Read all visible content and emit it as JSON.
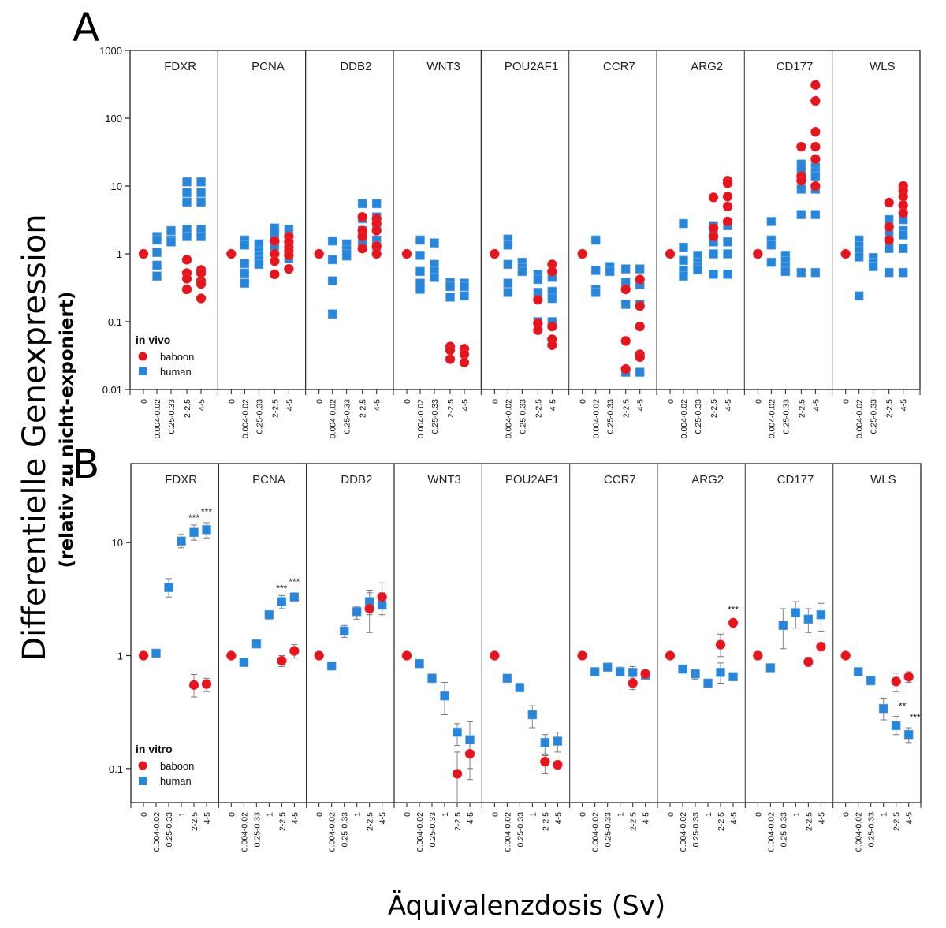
{
  "figure": {
    "y_axis_title": "Differentielle Genexpression",
    "y_axis_subtitle": "(relativ zu nicht-exponiert)",
    "x_axis_title": "Äquivalenzdosis (Sv)"
  },
  "chart_data": [
    {
      "panel": "A",
      "type": "scatter",
      "scale": "log",
      "ylim": [
        0.01,
        1000
      ],
      "yticks": [
        "0.01",
        "0.1",
        "1",
        "10",
        "100",
        "1000"
      ],
      "yticks_values": [
        0.01,
        0.1,
        1,
        10,
        100,
        1000
      ],
      "categories": [
        "0",
        "0.004-0.02",
        "0.25-0.33",
        "2-2.5",
        "4-5"
      ],
      "legend": {
        "title": "in vivo",
        "entries": [
          {
            "name": "baboon",
            "color": "#e8141b",
            "marker": "circle"
          },
          {
            "name": "human",
            "color": "#2586de",
            "marker": "square"
          }
        ],
        "placement": "bottom-left"
      },
      "genes": [
        {
          "name": "FDXR",
          "human": [
            [],
            [
              1.8,
              1.6,
              1.05,
              0.68,
              0.47
            ],
            [
              2.2,
              1.6,
              1.5
            ],
            [
              11.5,
              8,
              5.8,
              2.3,
              2.0,
              1.8
            ],
            [
              11.5,
              8,
              5.8,
              2.3,
              2.0,
              1.8
            ]
          ],
          "baboon": [
            [
              1.0
            ],
            [],
            [],
            [
              0.82,
              0.52,
              0.43,
              0.3
            ],
            [
              0.58,
              0.52,
              0.4,
              0.36,
              0.22
            ]
          ]
        },
        {
          "name": "PCNA",
          "human": [
            [],
            [
              1.6,
              1.35,
              0.72,
              0.52,
              0.37
            ],
            [
              1.4,
              1.1,
              0.95,
              0.8,
              0.7
            ],
            [
              2.4,
              2.0,
              1.5,
              1.3
            ],
            [
              2.3,
              2.0,
              1.4,
              0.95,
              0.85
            ]
          ],
          "baboon": [
            [
              1.0
            ],
            [],
            [],
            [
              1.55,
              1.0,
              0.78,
              0.5
            ],
            [
              1.8,
              1.5,
              1.25,
              1.1,
              0.95,
              0.6
            ]
          ]
        },
        {
          "name": "DDB2",
          "human": [
            [],
            [
              1.55,
              0.82,
              0.4,
              0.13
            ],
            [
              1.4,
              1.15,
              1.0,
              0.93
            ],
            [
              5.5,
              3.3,
              2.2,
              1.5
            ],
            [
              5.5,
              3.5,
              2.5,
              1.6,
              1.3
            ]
          ],
          "baboon": [
            [
              1.0
            ],
            [],
            [],
            [
              3.5,
              2.2,
              1.8,
              1.2
            ],
            [
              3.3,
              2.8,
              2.2,
              1.3,
              1.0
            ]
          ]
        },
        {
          "name": "WNT3",
          "human": [
            [],
            [
              1.6,
              0.95,
              0.55,
              0.37,
              0.3
            ],
            [
              1.45,
              0.7,
              0.55,
              0.45
            ],
            [
              0.38,
              0.33,
              0.23
            ],
            [
              0.37,
              0.33,
              0.24
            ]
          ],
          "baboon": [
            [
              1.0
            ],
            [],
            [],
            [
              0.043,
              0.038,
              0.028
            ],
            [
              0.04,
              0.033,
              0.025
            ]
          ]
        },
        {
          "name": "POU2AF1",
          "human": [
            [],
            [
              1.65,
              1.35,
              0.7,
              0.37,
              0.27
            ],
            [
              0.75,
              0.62,
              0.55
            ],
            [
              0.5,
              0.42,
              0.27,
              0.23,
              0.1
            ],
            [
              0.45,
              0.28,
              0.22,
              0.1
            ]
          ],
          "baboon": [
            [
              1.0
            ],
            [],
            [],
            [
              0.21,
              0.095,
              0.075
            ],
            [
              0.7,
              0.55,
              0.085,
              0.055,
              0.045
            ]
          ]
        },
        {
          "name": "CCR7",
          "human": [
            [],
            [
              1.6,
              0.57,
              0.3,
              0.27
            ],
            [
              0.65,
              0.55
            ],
            [
              0.6,
              0.38,
              0.18,
              0.018
            ],
            [
              0.6,
              0.35,
              0.18,
              0.018
            ]
          ],
          "baboon": [
            [
              1.0
            ],
            [],
            [],
            [
              0.3,
              0.052,
              0.02
            ],
            [
              0.42,
              0.17,
              0.085,
              0.033,
              0.03
            ]
          ]
        },
        {
          "name": "ARG2",
          "human": [
            [],
            [
              2.8,
              1.25,
              0.8,
              0.57,
              0.47
            ],
            [
              0.95,
              0.75,
              0.65,
              0.58
            ],
            [
              2.6,
              2.0,
              1.5,
              1.0,
              0.5
            ],
            [
              2.6,
              1.5,
              1.0,
              0.5
            ]
          ],
          "baboon": [
            [
              1.0
            ],
            [],
            [],
            [
              6.8,
              2.4,
              1.8
            ],
            [
              12,
              11,
              7,
              5,
              3
            ]
          ]
        },
        {
          "name": "CD177",
          "human": [
            [],
            [
              3.0,
              1.6,
              1.35,
              0.75
            ],
            [
              0.95,
              0.78,
              0.65,
              0.55
            ],
            [
              21,
              17,
              13,
              9,
              3.8,
              0.53
            ],
            [
              19,
              16,
              14,
              9,
              3.8,
              0.53
            ]
          ],
          "baboon": [
            [
              1.0
            ],
            [],
            [],
            [
              38,
              14,
              12
            ],
            [
              310,
              180,
              63,
              38,
              25,
              10
            ]
          ]
        },
        {
          "name": "WLS",
          "human": [
            [],
            [
              1.6,
              1.3,
              1.1,
              0.9,
              0.24
            ],
            [
              0.88,
              0.75,
              0.65
            ],
            [
              3.2,
              2.4,
              1.9,
              1.6,
              1.2,
              0.53
            ],
            [
              3.2,
              2.2,
              1.9,
              1.2,
              0.53
            ]
          ],
          "baboon": [
            [
              1.0
            ],
            [],
            [],
            [
              5.7,
              2.5,
              1.6
            ],
            [
              10,
              8.5,
              7,
              5.2,
              4
            ]
          ]
        }
      ]
    },
    {
      "panel": "B",
      "type": "scatter",
      "scale": "log",
      "ylim": [
        0.05,
        50
      ],
      "yticks": [
        "0.1",
        "1",
        "10"
      ],
      "yticks_values": [
        0.1,
        1,
        10
      ],
      "categories": [
        "0",
        "0.004-0.02",
        "0.25-0.33",
        "1",
        "2-2.5",
        "4-5"
      ],
      "legend": {
        "title": "in vitro",
        "entries": [
          {
            "name": "baboon",
            "color": "#e8141b",
            "marker": "circle"
          },
          {
            "name": "human",
            "color": "#2586de",
            "marker": "square"
          }
        ],
        "placement": "bottom-left"
      },
      "genes": [
        {
          "name": "FDXR",
          "human": [
            null,
            [
              1.05,
              1.0,
              1.08
            ],
            [
              4.0,
              3.3,
              4.8
            ],
            [
              10.3,
              9.0,
              11.8
            ],
            [
              12.3,
              10.5,
              14.3
            ],
            [
              13.0,
              11.0,
              15.0
            ]
          ],
          "baboon": [
            [
              1.0,
              0.97,
              1.03
            ],
            null,
            null,
            null,
            [
              0.55,
              0.43,
              0.68
            ],
            [
              0.56,
              0.48,
              0.63
            ]
          ],
          "sig": [
            null,
            null,
            null,
            null,
            "***",
            "***"
          ]
        },
        {
          "name": "PCNA",
          "human": [
            null,
            [
              0.87,
              0.85,
              0.9
            ],
            [
              1.27,
              1.23,
              1.32
            ],
            [
              2.3,
              2.1,
              2.45
            ],
            [
              3.0,
              2.6,
              3.4
            ],
            [
              3.3,
              3.0,
              3.6
            ]
          ],
          "baboon": [
            [
              1.0,
              0.97,
              1.03
            ],
            null,
            null,
            null,
            [
              0.9,
              0.8,
              1.0
            ],
            [
              1.1,
              0.95,
              1.25
            ]
          ],
          "sig": [
            null,
            null,
            null,
            null,
            "***",
            "***"
          ]
        },
        {
          "name": "DDB2",
          "human": [
            null,
            [
              0.81,
              0.78,
              0.84
            ],
            [
              1.65,
              1.45,
              1.85
            ],
            [
              2.45,
              2.1,
              2.7
            ],
            [
              3.0,
              2.3,
              3.8
            ],
            [
              2.8,
              2.2,
              3.6
            ]
          ],
          "baboon": [
            [
              1.0,
              0.97,
              1.03
            ],
            null,
            null,
            null,
            [
              2.6,
              1.6,
              3.6
            ],
            [
              3.3,
              2.3,
              4.4
            ]
          ],
          "sig": [
            null,
            null,
            null,
            null,
            null,
            null
          ]
        },
        {
          "name": "WNT3",
          "human": [
            null,
            [
              0.85,
              0.8,
              0.9
            ],
            [
              0.63,
              0.56,
              0.7
            ],
            [
              0.44,
              0.3,
              0.58
            ],
            [
              0.21,
              0.16,
              0.25
            ],
            [
              0.18,
              0.1,
              0.26
            ]
          ],
          "baboon": [
            [
              1.0,
              0.97,
              1.03
            ],
            null,
            null,
            null,
            [
              0.09,
              0.04,
              0.14
            ],
            [
              0.135,
              0.08,
              0.19
            ]
          ],
          "sig": [
            null,
            null,
            null,
            null,
            null,
            null
          ]
        },
        {
          "name": "POU2AF1",
          "human": [
            null,
            [
              0.63,
              0.58,
              0.68
            ],
            [
              0.52,
              0.48,
              0.57
            ],
            [
              0.3,
              0.23,
              0.36
            ],
            [
              0.17,
              0.135,
              0.2
            ],
            [
              0.175,
              0.14,
              0.21
            ]
          ],
          "baboon": [
            [
              1.0,
              0.97,
              1.03
            ],
            null,
            null,
            null,
            [
              0.115,
              0.09,
              0.13
            ],
            [
              0.108,
              0.1,
              0.115
            ]
          ],
          "sig": [
            null,
            null,
            null,
            null,
            null,
            null
          ]
        },
        {
          "name": "CCR7",
          "human": [
            null,
            [
              0.72,
              0.68,
              0.76
            ],
            [
              0.79,
              0.74,
              0.84
            ],
            [
              0.72,
              0.66,
              0.79
            ],
            [
              0.71,
              0.63,
              0.8
            ],
            [
              0.67,
              0.64,
              0.72
            ]
          ],
          "baboon": [
            [
              1.0,
              0.97,
              1.03
            ],
            null,
            null,
            null,
            [
              0.57,
              0.5,
              0.65
            ],
            [
              0.69,
              0.65,
              0.73
            ]
          ],
          "sig": [
            null,
            null,
            null,
            null,
            null,
            null
          ]
        },
        {
          "name": "ARG2",
          "human": [
            null,
            [
              0.76,
              0.74,
              0.78
            ],
            [
              0.69,
              0.62,
              0.76
            ],
            [
              0.57,
              0.52,
              0.62
            ],
            [
              0.71,
              0.57,
              0.86
            ],
            [
              0.65,
              0.6,
              0.7
            ]
          ],
          "baboon": [
            [
              1.0,
              0.97,
              1.03
            ],
            null,
            null,
            null,
            [
              1.25,
              0.98,
              1.55
            ],
            [
              1.95,
              1.75,
              2.2
            ]
          ],
          "sig": [
            null,
            null,
            null,
            null,
            null,
            "***"
          ]
        },
        {
          "name": "CD177",
          "human": [
            null,
            [
              0.78,
              0.73,
              0.83
            ],
            [
              1.85,
              1.15,
              2.6
            ],
            [
              2.4,
              1.75,
              3.0
            ],
            [
              2.1,
              1.6,
              2.6
            ],
            [
              2.3,
              1.65,
              2.9
            ]
          ],
          "baboon": [
            [
              1.0,
              0.97,
              1.03
            ],
            null,
            null,
            null,
            [
              0.88,
              0.8,
              0.97
            ],
            [
              1.2,
              1.1,
              1.3
            ]
          ],
          "sig": [
            null,
            null,
            null,
            null,
            null,
            null
          ]
        },
        {
          "name": "WLS",
          "human": [
            null,
            [
              0.72,
              0.68,
              0.76
            ],
            [
              0.6,
              0.55,
              0.65
            ],
            [
              0.34,
              0.27,
              0.42
            ],
            [
              0.24,
              0.2,
              0.29
            ],
            [
              0.2,
              0.17,
              0.23
            ]
          ],
          "baboon": [
            [
              1.0,
              0.97,
              1.03
            ],
            null,
            null,
            null,
            [
              0.59,
              0.48,
              0.7
            ],
            [
              0.65,
              0.58,
              0.72
            ]
          ],
          "sig": [
            null,
            null,
            null,
            null,
            "**",
            "***"
          ]
        }
      ]
    }
  ]
}
